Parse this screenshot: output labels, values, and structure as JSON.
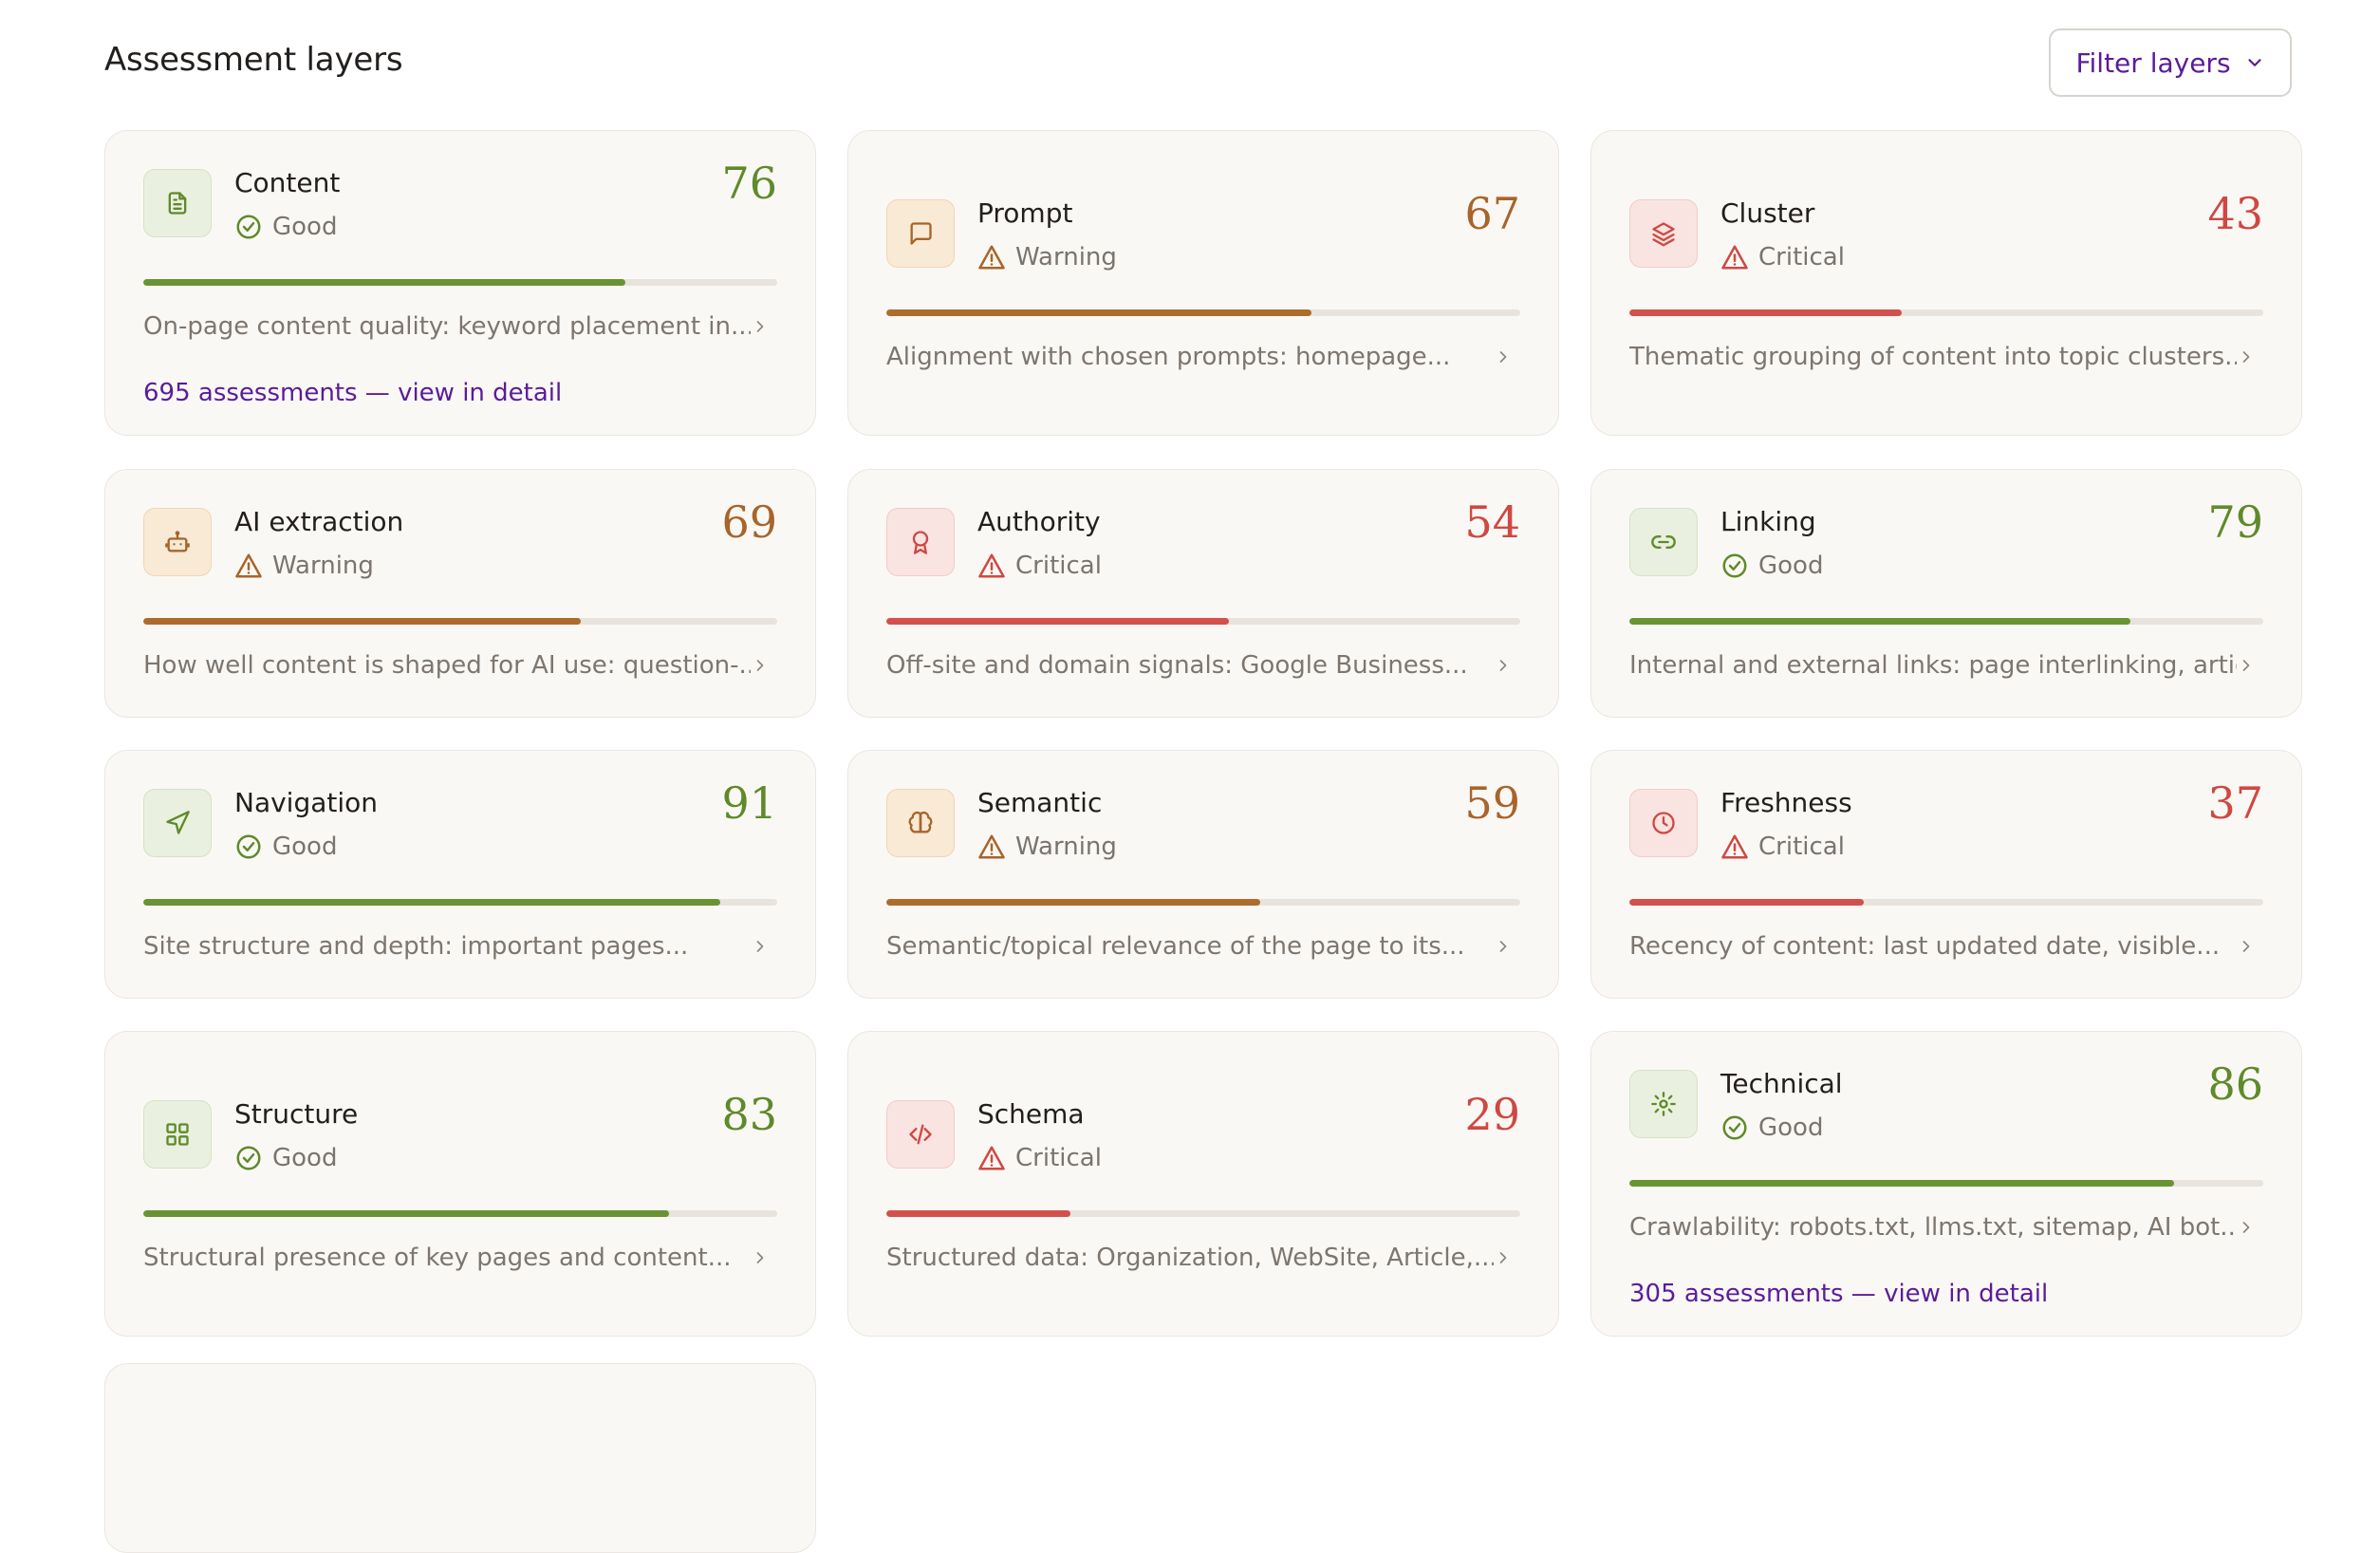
{
  "header": {
    "title": "Assessment layers",
    "filter_label": "Filter layers"
  },
  "status_labels": {
    "good": "Good",
    "warning": "Warning",
    "critical": "Critical"
  },
  "colors": {
    "good": "#5f8a2a",
    "warning": "#a8642a",
    "critical": "#cf4842",
    "link": "#5a1c9a"
  },
  "layers": [
    {
      "name": "Content",
      "status": "Good",
      "score": "76",
      "progress": 0.76,
      "icon": "document-icon",
      "description": "On-page content quality: keyword placement in...",
      "detail_link": "695 assessments — view in detail"
    },
    {
      "name": "Prompt",
      "status": "Warning",
      "score": "67",
      "progress": 0.67,
      "icon": "chat-icon",
      "description": "Alignment with chosen prompts: homepage..."
    },
    {
      "name": "Cluster",
      "status": "Critical",
      "score": "43",
      "progress": 0.43,
      "icon": "layers-icon",
      "description": "Thematic grouping of content into topic clusters..."
    },
    {
      "name": "AI extraction",
      "status": "Warning",
      "score": "69",
      "progress": 0.69,
      "icon": "robot-icon",
      "description": "How well content is shaped for AI use: question-..."
    },
    {
      "name": "Authority",
      "status": "Critical",
      "score": "54",
      "progress": 0.54,
      "icon": "award-icon",
      "description": "Off-site and domain signals: Google Business..."
    },
    {
      "name": "Linking",
      "status": "Good",
      "score": "79",
      "progress": 0.79,
      "icon": "link-icon",
      "description": "Internal and external links: page interlinking, article..."
    },
    {
      "name": "Navigation",
      "status": "Good",
      "score": "91",
      "progress": 0.91,
      "icon": "navigation-icon",
      "description": "Site structure and depth: important pages..."
    },
    {
      "name": "Semantic",
      "status": "Warning",
      "score": "59",
      "progress": 0.59,
      "icon": "brain-icon",
      "description": "Semantic/topical relevance of the page to its..."
    },
    {
      "name": "Freshness",
      "status": "Critical",
      "score": "37",
      "progress": 0.37,
      "icon": "clock-icon",
      "description": "Recency of content: last updated date, visible..."
    },
    {
      "name": "Structure",
      "status": "Good",
      "score": "83",
      "progress": 0.83,
      "icon": "grid-icon",
      "description": "Structural presence of key pages and content..."
    },
    {
      "name": "Schema",
      "status": "Critical",
      "score": "29",
      "progress": 0.29,
      "icon": "code-icon",
      "description": "Structured data: Organization, WebSite, Article,..."
    },
    {
      "name": "Technical",
      "status": "Good",
      "score": "86",
      "progress": 0.86,
      "icon": "gear-icon",
      "description": "Crawlability: robots.txt, llms.txt, sitemap, AI bot...",
      "detail_link": "305 assessments — view in detail"
    }
  ]
}
